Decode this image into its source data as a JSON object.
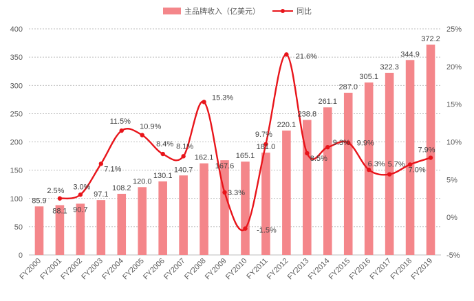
{
  "chart_data": {
    "type": "bar",
    "title": "",
    "categories": [
      "FY2000",
      "FY2001",
      "FY2002",
      "FY2003",
      "FY2004",
      "FY2005",
      "FY2006",
      "FY2007",
      "FY2008",
      "FY2009",
      "FY2010",
      "FY2011",
      "FY2012",
      "FY2013",
      "FY2014",
      "FY2015",
      "FY2016",
      "FY2017",
      "FY2018",
      "FY2019"
    ],
    "series": [
      {
        "name": "主品牌收入（亿美元）",
        "type": "bar",
        "axis": "left",
        "values": [
          85.9,
          88.1,
          90.7,
          97.1,
          108.2,
          120.0,
          130.1,
          140.7,
          162.1,
          167.6,
          165.1,
          181.0,
          220.1,
          238.8,
          261.1,
          287.0,
          305.1,
          322.3,
          344.9,
          372.2
        ],
        "labels": [
          "85.9",
          "88.1",
          "90.7",
          "97.1",
          "108.2",
          "120.0",
          "130.1",
          "140.7",
          "162.1",
          "167.6",
          "165.1",
          "181.0",
          "220.1",
          "238.8",
          "261.1",
          "287.0",
          "305.1",
          "322.3",
          "344.9",
          "372.2"
        ]
      },
      {
        "name": "同比",
        "type": "line",
        "axis": "right",
        "values": [
          null,
          2.5,
          3.0,
          7.1,
          11.5,
          10.9,
          8.4,
          8.1,
          15.3,
          3.3,
          -1.5,
          9.7,
          21.6,
          8.5,
          9.3,
          9.9,
          6.3,
          5.7,
          7.0,
          7.9
        ],
        "labels": [
          "",
          "2.5%",
          "3.0%",
          "7.1%",
          "11.5%",
          "10.9%",
          "8.4%",
          "8.1%",
          "15.3%",
          "3.3%",
          "-1.5%",
          "9.7%",
          "21.6%",
          "8.5%",
          "9.3%",
          "9.9%",
          "6.3%",
          "5.7%",
          "7.0%",
          "7.9%"
        ]
      }
    ],
    "y_left": {
      "min": 0,
      "max": 400,
      "ticks": [
        "0",
        "50",
        "100",
        "150",
        "200",
        "250",
        "300",
        "350",
        "400"
      ]
    },
    "y_right": {
      "min": -5,
      "max": 25,
      "ticks": [
        "-5%",
        "0%",
        "5%",
        "10%",
        "15%",
        "20%",
        "25%"
      ]
    },
    "grid": true,
    "legend_position": "top-center",
    "colors": {
      "bar": "#f4868a",
      "line": "#e8141a",
      "grid": "#a6a6a6",
      "axis_text": "#595959"
    }
  }
}
